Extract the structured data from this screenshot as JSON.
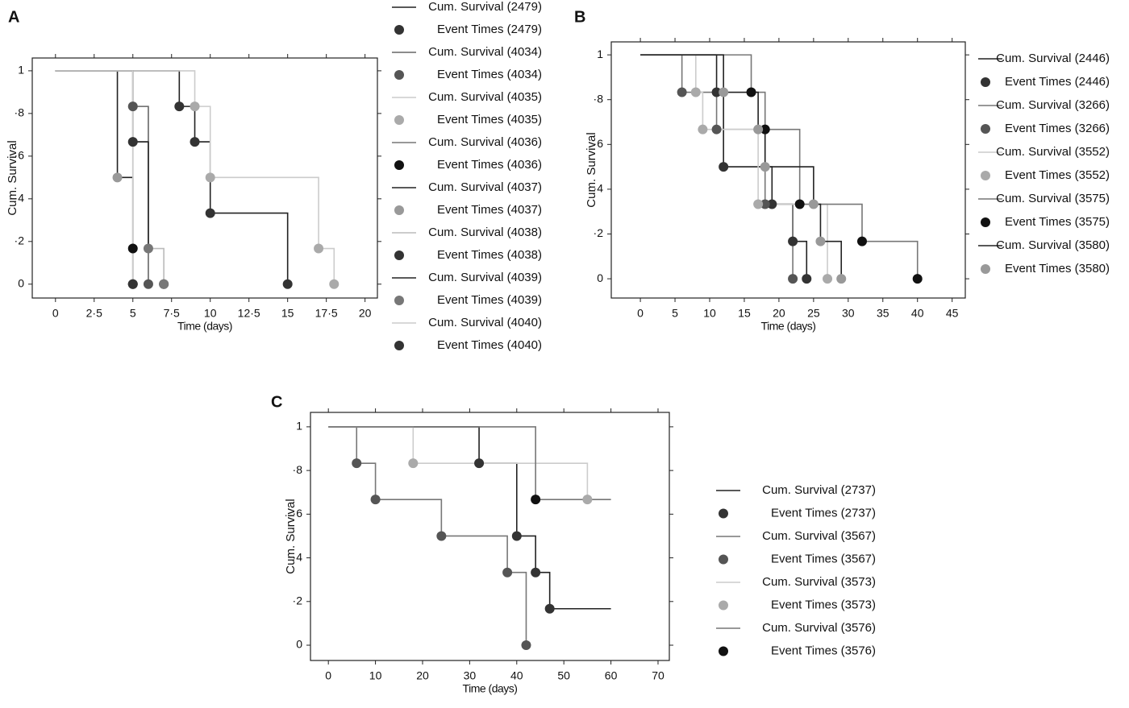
{
  "chart_data": [
    {
      "type": "line",
      "panel": "A",
      "xlabel": "Time (days)",
      "ylabel": "Cum. Survival",
      "xlim": [
        -1.5,
        20.8
      ],
      "ylim": [
        -0.065,
        1.06
      ],
      "xticks": [
        0,
        {
          "value": 2.5,
          "label": "2·5"
        },
        5,
        {
          "value": 7.5,
          "label": "7·5"
        },
        10,
        {
          "value": 12.5,
          "label": "12·5"
        },
        15,
        {
          "value": 17.5,
          "label": "17·5"
        },
        20
      ],
      "yticks": [
        0,
        {
          "value": 0.2,
          "label": "·2"
        },
        {
          "value": 0.4,
          "label": "·4"
        },
        {
          "value": 0.6,
          "label": "·6"
        },
        {
          "value": 0.8,
          "label": "·8"
        },
        1
      ],
      "series": [
        {
          "name": "Cum. Survival (2479)",
          "style": "line",
          "color": "#222222",
          "x": [
            0,
            8,
            8,
            9,
            9,
            10,
            10,
            15,
            15
          ],
          "values": [
            1,
            1,
            0.833,
            0.833,
            0.667,
            0.667,
            0.333,
            0.333,
            0
          ]
        },
        {
          "name": "Event Times (2479)",
          "style": "marker",
          "color": "#333333",
          "x": [
            8,
            9,
            10,
            15
          ],
          "values": [
            0.833,
            0.667,
            0.333,
            0
          ]
        },
        {
          "name": "Cum. Survival (4034)",
          "style": "line",
          "color": "#666666",
          "x": [
            0,
            5,
            5,
            6,
            6
          ],
          "values": [
            1,
            1,
            0.833,
            0.833,
            0
          ]
        },
        {
          "name": "Event Times (4034)",
          "style": "marker",
          "color": "#555555",
          "x": [
            5,
            6
          ],
          "values": [
            0.833,
            0
          ]
        },
        {
          "name": "Cum. Survival (4035)",
          "style": "line",
          "color": "#cccccc",
          "x": [
            0,
            9,
            9,
            10,
            10,
            17,
            17,
            18,
            18
          ],
          "values": [
            1,
            1,
            0.833,
            0.833,
            0.5,
            0.5,
            0.167,
            0.167,
            0
          ]
        },
        {
          "name": "Event Times (4035)",
          "style": "marker",
          "color": "#aaaaaa",
          "x": [
            9,
            10,
            17,
            18
          ],
          "values": [
            0.833,
            0.5,
            0.167,
            0
          ]
        },
        {
          "name": "Cum. Survival (4036)",
          "style": "line",
          "color": "#777777",
          "x": [
            0,
            5,
            5
          ],
          "values": [
            1,
            1,
            0
          ]
        },
        {
          "name": "Event Times (4036)",
          "style": "marker",
          "color": "#111111",
          "x": [
            5,
            5
          ],
          "values": [
            0.167,
            0
          ]
        },
        {
          "name": "Cum. Survival (4037)",
          "style": "line",
          "color": "#222222",
          "x": [
            0,
            4,
            4,
            5,
            5
          ],
          "values": [
            1,
            1,
            0.5,
            0.5,
            0
          ]
        },
        {
          "name": "Event Times (4037)",
          "style": "marker",
          "color": "#999999",
          "x": [
            4,
            5
          ],
          "values": [
            0.5,
            0
          ]
        },
        {
          "name": "Cum. Survival (4038)",
          "style": "line",
          "color": "#bbbbbb",
          "x": [
            0,
            5,
            5,
            6,
            6,
            7,
            7
          ],
          "values": [
            1,
            1,
            0.667,
            0.667,
            0.167,
            0.167,
            0
          ]
        },
        {
          "name": "Event Times (4038)",
          "style": "marker",
          "color": "#333333",
          "x": [
            5,
            7
          ],
          "values": [
            0.667,
            0
          ]
        },
        {
          "name": "Cum. Survival (4039)",
          "style": "line",
          "color": "#222222",
          "x": [
            0,
            5,
            5,
            6,
            6
          ],
          "values": [
            1,
            1,
            0.667,
            0.667,
            0.167
          ]
        },
        {
          "name": "Event Times (4039)",
          "style": "marker",
          "color": "#777777",
          "x": [
            6,
            7
          ],
          "values": [
            0.167,
            0
          ]
        },
        {
          "name": "Cum. Survival (4040)",
          "style": "line",
          "color": "#cccccc",
          "x": [
            0,
            5,
            5
          ],
          "values": [
            1,
            1,
            0
          ]
        },
        {
          "name": "Event Times (4040)",
          "style": "marker",
          "color": "#333333",
          "x": [
            5
          ],
          "values": [
            0
          ]
        }
      ]
    },
    {
      "type": "line",
      "panel": "B",
      "xlabel": "Time (days)",
      "ylabel": "Cum. Survival",
      "xlim": [
        -4.2,
        46.9
      ],
      "ylim": [
        -0.086,
        1.058
      ],
      "xticks": [
        0,
        5,
        10,
        15,
        20,
        25,
        30,
        35,
        40,
        45
      ],
      "yticks": [
        0,
        {
          "value": 0.2,
          "label": "·2"
        },
        {
          "value": 0.4,
          "label": "·4"
        },
        {
          "value": 0.6,
          "label": "·6"
        },
        {
          "value": 0.8,
          "label": "·8"
        },
        1
      ],
      "series": [
        {
          "name": "Cum. Survival (2446)",
          "style": "line",
          "color": "#222222",
          "x": [
            0,
            11,
            11,
            12,
            12,
            19,
            19,
            22,
            22,
            24,
            24
          ],
          "values": [
            1,
            1,
            0.833,
            0.833,
            0.5,
            0.5,
            0.333,
            0.333,
            0.167,
            0.167,
            0
          ]
        },
        {
          "name": "Event Times (2446)",
          "style": "marker",
          "color": "#333333",
          "x": [
            11,
            12,
            19,
            22,
            24
          ],
          "values": [
            0.833,
            0.5,
            0.333,
            0.167,
            0
          ]
        },
        {
          "name": "Cum. Survival (3266)",
          "style": "line",
          "color": "#777777",
          "x": [
            0,
            6,
            6,
            11,
            11,
            18,
            18,
            22,
            22
          ],
          "values": [
            1,
            1,
            0.833,
            0.833,
            0.667,
            0.667,
            0.333,
            0.333,
            0
          ]
        },
        {
          "name": "Event Times (3266)",
          "style": "marker",
          "color": "#555555",
          "x": [
            6,
            11,
            18,
            22
          ],
          "values": [
            0.833,
            0.667,
            0.333,
            0
          ]
        },
        {
          "name": "Cum. Survival (3552)",
          "style": "line",
          "color": "#cccccc",
          "x": [
            0,
            8,
            8,
            9,
            9,
            17,
            17,
            27,
            27
          ],
          "values": [
            1,
            1,
            0.833,
            0.833,
            0.667,
            0.667,
            0.333,
            0.333,
            0
          ]
        },
        {
          "name": "Event Times (3552)",
          "style": "marker",
          "color": "#aaaaaa",
          "x": [
            8,
            9,
            17,
            27
          ],
          "values": [
            0.833,
            0.667,
            0.333,
            0
          ]
        },
        {
          "name": "Cum. Survival (3575)",
          "style": "line",
          "color": "#777777",
          "x": [
            0,
            16,
            16,
            18,
            18,
            23,
            23,
            32,
            32,
            40,
            40
          ],
          "values": [
            1,
            1,
            0.833,
            0.833,
            0.667,
            0.667,
            0.333,
            0.333,
            0.167,
            0.167,
            0
          ]
        },
        {
          "name": "Event Times (3575)",
          "style": "marker",
          "color": "#111111",
          "x": [
            16,
            18,
            23,
            32,
            40
          ],
          "values": [
            0.833,
            0.667,
            0.333,
            0.167,
            0
          ]
        },
        {
          "name": "Cum. Survival (3580)",
          "style": "line",
          "color": "#222222",
          "x": [
            0,
            12,
            12,
            17,
            17,
            18,
            18,
            25,
            25,
            26,
            26,
            29,
            29
          ],
          "values": [
            1,
            1,
            0.833,
            0.833,
            0.667,
            0.667,
            0.5,
            0.5,
            0.333,
            0.333,
            0.167,
            0.167,
            0
          ]
        },
        {
          "name": "Event Times (3580)",
          "style": "marker",
          "color": "#999999",
          "x": [
            12,
            17,
            18,
            25,
            26,
            29
          ],
          "values": [
            0.833,
            0.667,
            0.5,
            0.333,
            0.167,
            0
          ]
        }
      ]
    },
    {
      "type": "line",
      "panel": "C",
      "xlabel": "Time (days)",
      "ylabel": "Cum. Survival",
      "xlim": [
        -3.8,
        72.4
      ],
      "ylim": [
        -0.07,
        1.066
      ],
      "xticks": [
        0,
        10,
        20,
        30,
        40,
        50,
        60,
        70
      ],
      "yticks": [
        0,
        {
          "value": 0.2,
          "label": "·2"
        },
        {
          "value": 0.4,
          "label": "·4"
        },
        {
          "value": 0.6,
          "label": "·6"
        },
        {
          "value": 0.8,
          "label": "·8"
        },
        1
      ],
      "series": [
        {
          "name": "Cum. Survival (2737)",
          "style": "line",
          "color": "#222222",
          "x": [
            0,
            32,
            32,
            40,
            40,
            44,
            44,
            47,
            47,
            60
          ],
          "values": [
            1,
            1,
            0.833,
            0.833,
            0.5,
            0.5,
            0.333,
            0.333,
            0.167,
            0.167
          ]
        },
        {
          "name": "Event Times (2737)",
          "style": "marker",
          "color": "#333333",
          "x": [
            32,
            40,
            44,
            47
          ],
          "values": [
            0.833,
            0.5,
            0.333,
            0.167
          ]
        },
        {
          "name": "Cum. Survival (3567)",
          "style": "line",
          "color": "#777777",
          "x": [
            0,
            6,
            6,
            10,
            10,
            24,
            24,
            38,
            38,
            42,
            42
          ],
          "values": [
            1,
            1,
            0.833,
            0.833,
            0.667,
            0.667,
            0.5,
            0.5,
            0.333,
            0.333,
            0
          ]
        },
        {
          "name": "Event Times (3567)",
          "style": "marker",
          "color": "#555555",
          "x": [
            6,
            10,
            24,
            38,
            42
          ],
          "values": [
            0.833,
            0.667,
            0.5,
            0.333,
            0
          ]
        },
        {
          "name": "Cum. Survival (3573)",
          "style": "line",
          "color": "#cccccc",
          "x": [
            0,
            18,
            18,
            55,
            55,
            60
          ],
          "values": [
            1,
            1,
            0.833,
            0.833,
            0.667,
            0.667
          ]
        },
        {
          "name": "Event Times (3573)",
          "style": "marker",
          "color": "#aaaaaa",
          "x": [
            18,
            55
          ],
          "values": [
            0.833,
            0.667
          ]
        },
        {
          "name": "Cum. Survival (3576)",
          "style": "line",
          "color": "#777777",
          "x": [
            0,
            44,
            44,
            60
          ],
          "values": [
            1,
            1,
            0.667,
            0.667
          ]
        },
        {
          "name": "Event Times (3576)",
          "style": "marker",
          "color": "#111111",
          "x": [
            44
          ],
          "values": [
            0.667
          ]
        }
      ]
    }
  ]
}
